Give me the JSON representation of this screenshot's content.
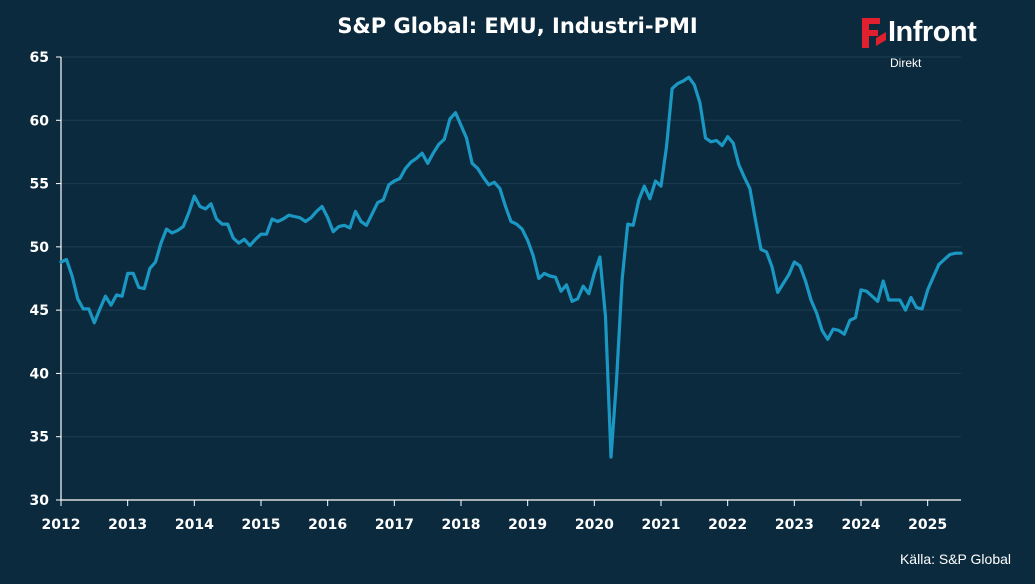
{
  "header": {
    "title": "S&P Global: EMU, Industri-PMI"
  },
  "logo": {
    "name": "Infront",
    "sub": "Direkt",
    "accent": "#e0202e"
  },
  "footer": {
    "source": "Källa:  S&P Global"
  },
  "colors": {
    "background": "#0c2a3d",
    "line": "#1a98c3",
    "text": "#ffffff",
    "grid": "#1d3e52"
  },
  "chart_data": {
    "type": "line",
    "title": "S&P Global: EMU, Industri-PMI",
    "xlabel": "",
    "ylabel": "",
    "ylim": [
      30,
      65
    ],
    "xlim": [
      2012.0,
      2025.5
    ],
    "y_ticks": [
      30,
      35,
      40,
      45,
      50,
      55,
      60,
      65
    ],
    "x_ticks": [
      2012,
      2013,
      2014,
      2015,
      2016,
      2017,
      2018,
      2019,
      2020,
      2021,
      2022,
      2023,
      2024,
      2025
    ],
    "grid": true,
    "legend": "none",
    "series": [
      {
        "x": [
          2012.0,
          2012.083,
          2012.167,
          2012.25,
          2012.333,
          2012.417,
          2012.5,
          2012.583,
          2012.667,
          2012.75,
          2012.833,
          2012.917,
          2013.0,
          2013.083,
          2013.167,
          2013.25,
          2013.333,
          2013.417,
          2013.5,
          2013.583,
          2013.667,
          2013.75,
          2013.833,
          2013.917,
          2014.0,
          2014.083,
          2014.167,
          2014.25,
          2014.333,
          2014.417,
          2014.5,
          2014.583,
          2014.667,
          2014.75,
          2014.833,
          2014.917,
          2015.0,
          2015.083,
          2015.167,
          2015.25,
          2015.333,
          2015.417,
          2015.5,
          2015.583,
          2015.667,
          2015.75,
          2015.833,
          2015.917,
          2016.0,
          2016.083,
          2016.167,
          2016.25,
          2016.333,
          2016.417,
          2016.5,
          2016.583,
          2016.667,
          2016.75,
          2016.833,
          2016.917,
          2017.0,
          2017.083,
          2017.167,
          2017.25,
          2017.333,
          2017.417,
          2017.5,
          2017.583,
          2017.667,
          2017.75,
          2017.833,
          2017.917,
          2018.0,
          2018.083,
          2018.167,
          2018.25,
          2018.333,
          2018.417,
          2018.5,
          2018.583,
          2018.667,
          2018.75,
          2018.833,
          2018.917,
          2019.0,
          2019.083,
          2019.167,
          2019.25,
          2019.333,
          2019.417,
          2019.5,
          2019.583,
          2019.667,
          2019.75,
          2019.833,
          2019.917,
          2020.0,
          2020.083,
          2020.167,
          2020.25,
          2020.333,
          2020.417,
          2020.5,
          2020.583,
          2020.667,
          2020.75,
          2020.833,
          2020.917,
          2021.0,
          2021.083,
          2021.167,
          2021.25,
          2021.333,
          2021.417,
          2021.5,
          2021.583,
          2021.667,
          2021.75,
          2021.833,
          2021.917,
          2022.0,
          2022.083,
          2022.167,
          2022.25,
          2022.333,
          2022.417,
          2022.5,
          2022.583,
          2022.667,
          2022.75,
          2022.833,
          2022.917,
          2023.0,
          2023.083,
          2023.167,
          2023.25,
          2023.333,
          2023.417,
          2023.5,
          2023.583,
          2023.667,
          2023.75,
          2023.833,
          2023.917,
          2024.0,
          2024.083,
          2024.167,
          2024.25,
          2024.333,
          2024.417,
          2024.5,
          2024.583,
          2024.667,
          2024.75,
          2024.833,
          2024.917,
          2025.0,
          2025.083,
          2025.167,
          2025.25,
          2025.333,
          2025.417,
          2025.5
        ],
        "values": [
          48.8,
          49.0,
          47.7,
          45.9,
          45.1,
          45.1,
          44.0,
          45.1,
          46.1,
          45.4,
          46.2,
          46.1,
          47.9,
          47.9,
          46.8,
          46.7,
          48.3,
          48.8,
          50.3,
          51.4,
          51.1,
          51.3,
          51.6,
          52.7,
          54.0,
          53.2,
          53.0,
          53.4,
          52.2,
          51.8,
          51.8,
          50.7,
          50.3,
          50.6,
          50.1,
          50.6,
          51.0,
          51.0,
          52.2,
          52.0,
          52.2,
          52.5,
          52.4,
          52.3,
          52.0,
          52.3,
          52.8,
          53.2,
          52.3,
          51.2,
          51.6,
          51.7,
          51.5,
          52.8,
          52.0,
          51.7,
          52.6,
          53.5,
          53.7,
          54.9,
          55.2,
          55.4,
          56.2,
          56.7,
          57.0,
          57.4,
          56.6,
          57.4,
          58.1,
          58.5,
          60.1,
          60.6,
          59.6,
          58.6,
          56.6,
          56.2,
          55.5,
          54.9,
          55.1,
          54.6,
          53.2,
          52.0,
          51.8,
          51.4,
          50.5,
          49.3,
          47.5,
          47.9,
          47.7,
          47.6,
          46.5,
          47.0,
          45.7,
          45.9,
          46.9,
          46.3,
          47.9,
          49.2,
          44.5,
          33.4,
          39.4,
          47.4,
          51.8,
          51.7,
          53.7,
          54.8,
          53.8,
          55.2,
          54.8,
          57.9,
          62.5,
          62.9,
          63.1,
          63.4,
          62.8,
          61.4,
          58.6,
          58.3,
          58.4,
          58.0,
          58.7,
          58.2,
          56.5,
          55.5,
          54.6,
          52.1,
          49.8,
          49.6,
          48.4,
          46.4,
          47.1,
          47.8,
          48.8,
          48.5,
          47.3,
          45.8,
          44.8,
          43.4,
          42.7,
          43.5,
          43.4,
          43.1,
          44.2,
          44.4,
          46.6,
          46.5,
          46.1,
          45.7,
          47.3,
          45.8,
          45.8,
          45.8,
          45.0,
          46.0,
          45.2,
          45.1,
          46.6,
          47.6,
          48.6,
          49.0,
          49.4,
          49.5,
          49.5
        ]
      }
    ]
  }
}
